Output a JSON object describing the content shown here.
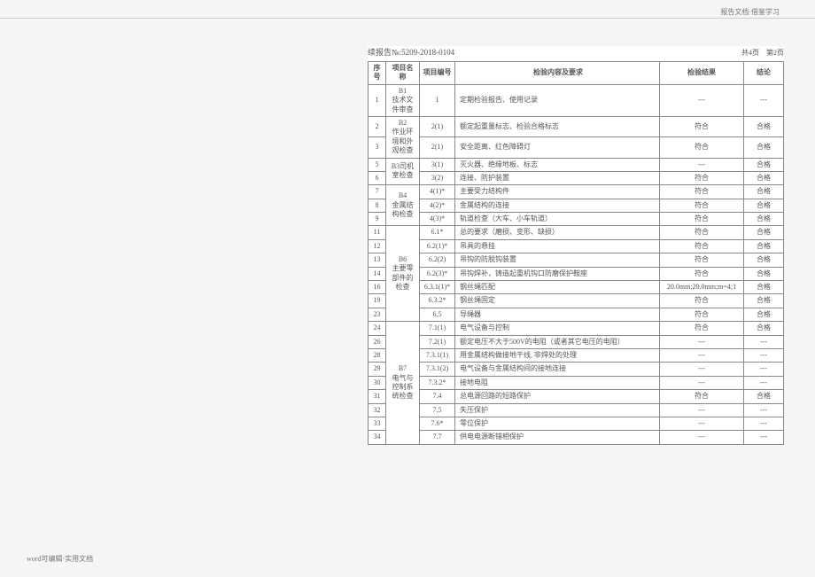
{
  "header_right": "报告文档·借鉴学习",
  "footer_left": "word可编辑·实用文档",
  "report_no_label": "续报告№:",
  "report_no": "5209-2018-0104",
  "page_count": "共4页 第2页",
  "headers": {
    "seq": "序号",
    "name": "项目名称",
    "code": "项目编号",
    "content": "检验内容及要求",
    "result": "检验结果",
    "concl": "结论"
  },
  "groups": [
    {
      "name": "B1\n技术文件审查",
      "rows": [
        {
          "seq": "1",
          "code": "1",
          "content": "定期检验报告、使用记录",
          "result": "---",
          "concl": "---"
        }
      ]
    },
    {
      "name": "B2\n作业环境和外观检查",
      "rows": [
        {
          "seq": "2",
          "code": "2(1)",
          "content": "额定起重量标志、检验合格标志",
          "result": "符合",
          "concl": "合格"
        },
        {
          "seq": "3",
          "code": "2(1)",
          "content": "安全距离、红色障碍灯",
          "result": "符合",
          "concl": "合格"
        }
      ]
    },
    {
      "name": "B3司机室检查",
      "rows": [
        {
          "seq": "5",
          "code": "3(1)",
          "content": "灭火器、绝缘地板、标志",
          "result": "---",
          "concl": "合格"
        },
        {
          "seq": "6",
          "code": "3(2)",
          "content": "连接、防护装置",
          "result": "符合",
          "concl": "合格"
        }
      ]
    },
    {
      "name": "B4\n金属结构检查",
      "rows": [
        {
          "seq": "7",
          "code": "4(1)*",
          "content": "主要受力结构件",
          "result": "符合",
          "concl": "合格"
        },
        {
          "seq": "8",
          "code": "4(2)*",
          "content": "金属结构的连接",
          "result": "符合",
          "concl": "合格"
        },
        {
          "seq": "9",
          "code": "4(3)*",
          "content": "轨道检查（大车、小车轨道）",
          "result": "符合",
          "concl": "合格"
        }
      ]
    },
    {
      "name": "B6\n主要零部件的检查",
      "rows": [
        {
          "seq": "11",
          "code": "6.1*",
          "content": "总的要求（磨损、变形、缺损）",
          "result": "符合",
          "concl": "合格"
        },
        {
          "seq": "12",
          "code": "6.2(1)*",
          "content": "吊具的悬挂",
          "result": "符合",
          "concl": "合格"
        },
        {
          "seq": "13",
          "code": "6.2(2)",
          "content": "吊钩的防脱钩装置",
          "result": "符合",
          "concl": "合格"
        },
        {
          "seq": "14",
          "code": "6.2(3)*",
          "content": "吊钩焊补，铸造起重机钩口防磨保护鞍座",
          "result": "符合",
          "concl": "合格"
        },
        {
          "seq": "16",
          "code": "6.3.1(1)*",
          "content": "钢丝绳匹配",
          "result": "20.0mm;20.0mm;m=4;1",
          "concl": "合格"
        },
        {
          "seq": "19",
          "code": "6.3.2*",
          "content": "钢丝绳固定",
          "result": "符合",
          "concl": "合格"
        },
        {
          "seq": "23",
          "code": "6.5",
          "content": "导绳器",
          "result": "符合",
          "concl": "合格"
        }
      ]
    },
    {
      "name": "B7\n电气与控制系统检查",
      "rows": [
        {
          "seq": "24",
          "code": "7.1(1)",
          "content": "电气设备与控制",
          "result": "符合",
          "concl": "合格"
        },
        {
          "seq": "26",
          "code": "7.2(1)",
          "content": "额定电压不大于500V的电阻（或者其它电压的电阻）",
          "result": "---",
          "concl": "---"
        },
        {
          "seq": "28",
          "code": "7.3.1(1)",
          "content": "用金属结构做接地干线, 非焊处的处理",
          "result": "---",
          "concl": "---"
        },
        {
          "seq": "29",
          "code": "7.3.1(2)",
          "content": "电气设备与金属结构间的接地连接",
          "result": "---",
          "concl": "---"
        },
        {
          "seq": "30",
          "code": "7.3.2*",
          "content": "接地电阻",
          "result": "---",
          "concl": "---"
        },
        {
          "seq": "31",
          "code": "7.4",
          "content": "总电源回路的短路保护",
          "result": "符合",
          "concl": "合格"
        },
        {
          "seq": "32",
          "code": "7.5",
          "content": "失压保护",
          "result": "---",
          "concl": "---"
        },
        {
          "seq": "33",
          "code": "7.6*",
          "content": "零位保护",
          "result": "---",
          "concl": "---"
        },
        {
          "seq": "34",
          "code": "7.7",
          "content": "供电电源断错相保护",
          "result": "---",
          "concl": "---"
        }
      ]
    }
  ]
}
